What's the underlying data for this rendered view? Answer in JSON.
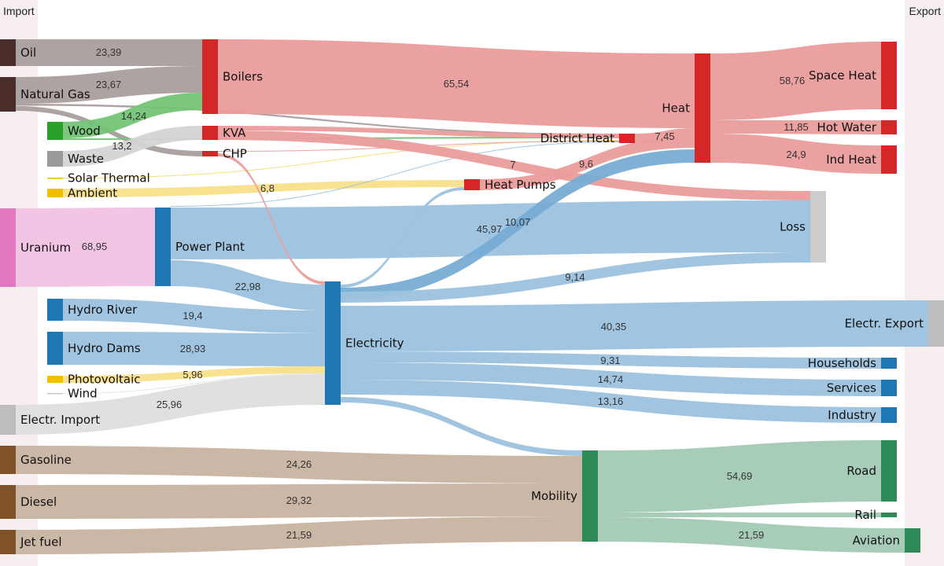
{
  "header": {
    "import_label": "Import",
    "export_label": "Export"
  },
  "chart_data": {
    "type": "sankey",
    "value_format": "decimal comma",
    "nodes": [
      {
        "name": "Oil",
        "color": "#4a2c2a"
      },
      {
        "name": "Natural Gas",
        "color": "#4a2c2a"
      },
      {
        "name": "Wood",
        "color": "#2ca02c"
      },
      {
        "name": "Waste",
        "color": "#9a9a9a"
      },
      {
        "name": "Solar Thermal",
        "color": "#e8c000"
      },
      {
        "name": "Ambient",
        "color": "#f0c000"
      },
      {
        "name": "Uranium",
        "color": "#e377c2"
      },
      {
        "name": "Hydro River",
        "color": "#1f77b4"
      },
      {
        "name": "Hydro Dams",
        "color": "#1f77b4"
      },
      {
        "name": "Photovoltaic",
        "color": "#f0c000"
      },
      {
        "name": "Wind",
        "color": "#c8c8c8"
      },
      {
        "name": "Electr. Import",
        "color": "#bdbdbd"
      },
      {
        "name": "Gasoline",
        "color": "#7f5228"
      },
      {
        "name": "Diesel",
        "color": "#7f5228"
      },
      {
        "name": "Jet fuel",
        "color": "#7f5228"
      },
      {
        "name": "Boilers",
        "color": "#d62728"
      },
      {
        "name": "KVA",
        "color": "#d62728"
      },
      {
        "name": "CHP",
        "color": "#d62728"
      },
      {
        "name": "Power Plant",
        "color": "#1f77b4"
      },
      {
        "name": "Heat Pumps",
        "color": "#d62728"
      },
      {
        "name": "Electricity",
        "color": "#1f77b4"
      },
      {
        "name": "District Heat",
        "color": "#d62728"
      },
      {
        "name": "Heat",
        "color": "#d62728"
      },
      {
        "name": "Loss",
        "color": "#cccccc"
      },
      {
        "name": "Mobility",
        "color": "#2e8b57"
      },
      {
        "name": "Space Heat",
        "color": "#d62728"
      },
      {
        "name": "Hot Water",
        "color": "#d62728"
      },
      {
        "name": "Ind Heat",
        "color": "#d62728"
      },
      {
        "name": "Electr. Export",
        "color": "#bdbdbd"
      },
      {
        "name": "Households",
        "color": "#1f77b4"
      },
      {
        "name": "Services",
        "color": "#1f77b4"
      },
      {
        "name": "Industry",
        "color": "#1f77b4"
      },
      {
        "name": "Road",
        "color": "#2e8b57"
      },
      {
        "name": "Rail",
        "color": "#2e8b57"
      },
      {
        "name": "Aviation",
        "color": "#2e8b57"
      }
    ],
    "links": [
      {
        "source": "Oil",
        "target": "Boilers",
        "value": "23,39",
        "color": "#a99e9d"
      },
      {
        "source": "Natural Gas",
        "target": "Boilers",
        "value": "23,67",
        "color": "#a99e9d"
      },
      {
        "source": "Natural Gas",
        "target": "District Heat",
        "value": null,
        "color": "#a99e9d"
      },
      {
        "source": "Natural Gas",
        "target": "CHP",
        "value": null,
        "color": "#a99e9d"
      },
      {
        "source": "Wood",
        "target": "Boilers",
        "value": "14,24",
        "color": "#74c476"
      },
      {
        "source": "Wood",
        "target": "District Heat",
        "value": null,
        "color": "#74c476"
      },
      {
        "source": "Waste",
        "target": "KVA",
        "value": "13,2",
        "color": "#d4d4d4"
      },
      {
        "source": "Solar Thermal",
        "target": "District Heat",
        "value": null,
        "color": "#f5dc70"
      },
      {
        "source": "Ambient",
        "target": "Heat Pumps",
        "value": "6,8",
        "color": "#f8e08a"
      },
      {
        "source": "Uranium",
        "target": "Power Plant",
        "value": "68,95",
        "color": "#f0c2e2"
      },
      {
        "source": "Power Plant",
        "target": "Loss",
        "value": "45,97",
        "color": "#9cc2de"
      },
      {
        "source": "Power Plant",
        "target": "District Heat",
        "value": null,
        "color": "#9cc2de"
      },
      {
        "source": "Power Plant",
        "target": "Electricity",
        "value": "22,98",
        "color": "#9cc2de"
      },
      {
        "source": "CHP",
        "target": "Electricity",
        "value": null,
        "color": "#eb9c9c"
      },
      {
        "source": "CHP",
        "target": "District Heat",
        "value": null,
        "color": "#eb9c9c"
      },
      {
        "source": "Hydro River",
        "target": "Electricity",
        "value": "19,4",
        "color": "#9cc2de"
      },
      {
        "source": "Hydro Dams",
        "target": "Electricity",
        "value": "28,93",
        "color": "#9cc2de"
      },
      {
        "source": "Photovoltaic",
        "target": "Electricity",
        "value": "5,96",
        "color": "#f8e08a"
      },
      {
        "source": "Wind",
        "target": "Electricity",
        "value": null,
        "color": "#d8e8f0"
      },
      {
        "source": "Electr. Import",
        "target": "Electricity",
        "value": "25,96",
        "color": "#dedede"
      },
      {
        "source": "KVA",
        "target": "District Heat",
        "value": null,
        "color": "#eb9c9c"
      },
      {
        "source": "KVA",
        "target": "Loss",
        "value": "7",
        "color": "#eb9c9c"
      },
      {
        "source": "Boilers",
        "target": "Heat",
        "value": "65,54",
        "color": "#eb9c9c"
      },
      {
        "source": "District Heat",
        "target": "Heat",
        "value": "7,45",
        "color": "#eb9c9c"
      },
      {
        "source": "Heat Pumps",
        "target": "Heat",
        "value": "9,6",
        "color": "#eb9c9c"
      },
      {
        "source": "Electricity",
        "target": "Heat Pumps",
        "value": null,
        "color": "#9cc2de"
      },
      {
        "source": "Electricity",
        "target": "Heat",
        "value": "10,07",
        "color": "#78acd4"
      },
      {
        "source": "Electricity",
        "target": "Loss",
        "value": "9,14",
        "color": "#9cc2de"
      },
      {
        "source": "Electricity",
        "target": "Electr. Export",
        "value": "40,35",
        "color": "#9cc2de"
      },
      {
        "source": "Electricity",
        "target": "Households",
        "value": "9,31",
        "color": "#9cc2de"
      },
      {
        "source": "Electricity",
        "target": "Services",
        "value": "14,74",
        "color": "#9cc2de"
      },
      {
        "source": "Electricity",
        "target": "Industry",
        "value": "13,16",
        "color": "#9cc2de"
      },
      {
        "source": "Electricity",
        "target": "Mobility",
        "value": null,
        "color": "#9cc2de"
      },
      {
        "source": "Heat",
        "target": "Space Heat",
        "value": "58,76",
        "color": "#eb9c9c"
      },
      {
        "source": "Heat",
        "target": "Hot Water",
        "value": "11,85",
        "color": "#eb9c9c"
      },
      {
        "source": "Heat",
        "target": "Ind Heat",
        "value": "24,9",
        "color": "#eb9c9c"
      },
      {
        "source": "Gasoline",
        "target": "Mobility",
        "value": "24,26",
        "color": "#c8b3a0"
      },
      {
        "source": "Diesel",
        "target": "Mobility",
        "value": "29,32",
        "color": "#c8b3a0"
      },
      {
        "source": "Jet fuel",
        "target": "Mobility",
        "value": "21,59",
        "color": "#c8b3a0"
      },
      {
        "source": "Mobility",
        "target": "Road",
        "value": "54,69",
        "color": "#a2cab5"
      },
      {
        "source": "Mobility",
        "target": "Rail",
        "value": null,
        "color": "#a2cab5"
      },
      {
        "source": "Mobility",
        "target": "Aviation",
        "value": "21,59",
        "color": "#a2cab5"
      }
    ]
  }
}
